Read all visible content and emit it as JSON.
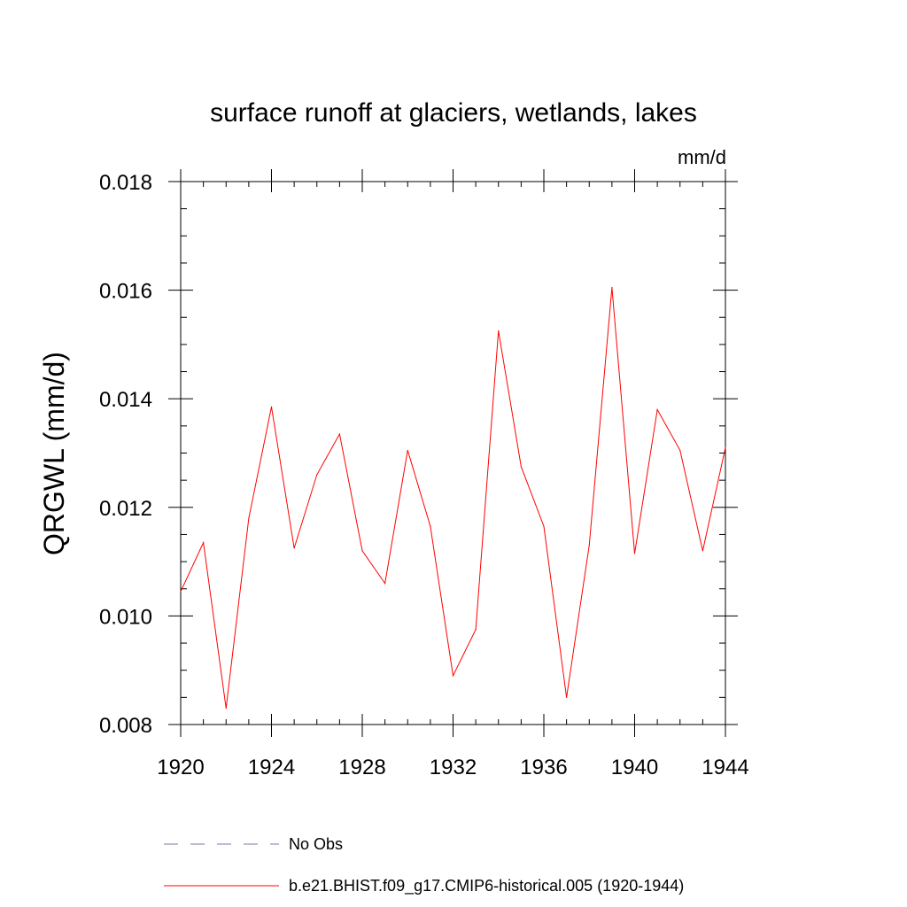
{
  "chart_data": {
    "type": "line",
    "title": "surface runoff at glaciers, wetlands, lakes",
    "units": "mm/d",
    "ylabel": "QRGWL  (mm/d)",
    "xlim": [
      1920,
      1944
    ],
    "ylim": [
      0.008,
      0.018
    ],
    "xticks": [
      "1920",
      "1924",
      "1928",
      "1932",
      "1936",
      "1940",
      "1944"
    ],
    "yticks": [
      "0.008",
      "0.010",
      "0.012",
      "0.014",
      "0.016",
      "0.018"
    ],
    "series": [
      {
        "name": "b.e21.BHIST.f09_g17.CMIP6-historical.005 (1920-1944)",
        "color": "#ff0000",
        "x": [
          1920,
          1921,
          1922,
          1923,
          1924,
          1925,
          1926,
          1927,
          1928,
          1929,
          1930,
          1931,
          1932,
          1933,
          1934,
          1935,
          1936,
          1937,
          1938,
          1939,
          1940,
          1941,
          1942,
          1943,
          1944
        ],
        "values": [
          0.01045,
          0.01135,
          0.0083,
          0.0118,
          0.01385,
          0.01125,
          0.0126,
          0.01335,
          0.0112,
          0.0106,
          0.01305,
          0.01165,
          0.0089,
          0.00975,
          0.01525,
          0.01275,
          0.01165,
          0.0085,
          0.0113,
          0.01605,
          0.01115,
          0.0138,
          0.01305,
          0.0112,
          0.0131
        ]
      }
    ],
    "legend": {
      "placement": "bottom",
      "entries": [
        {
          "label": "No Obs",
          "color": "#7777aa",
          "style": "dashed"
        },
        {
          "label": "b.e21.BHIST.f09_g17.CMIP6-historical.005 (1920-1944)",
          "color": "#ff0000",
          "style": "solid"
        }
      ]
    }
  }
}
